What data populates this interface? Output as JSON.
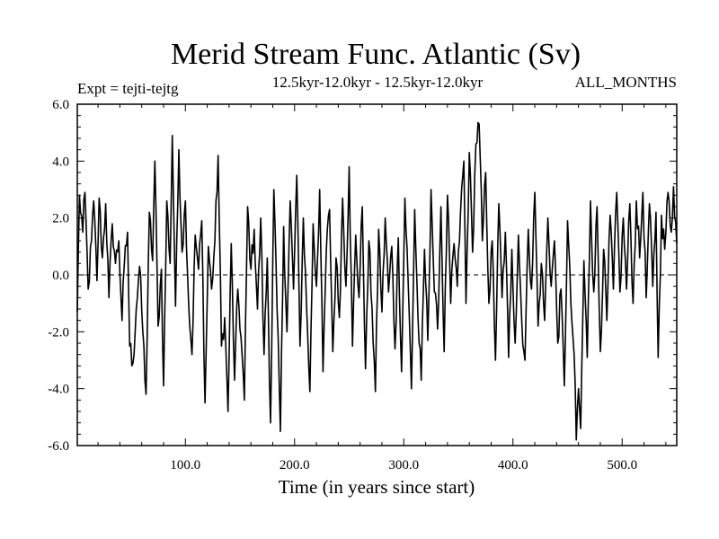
{
  "chart_data": {
    "type": "line",
    "title": "Merid Stream Func. Atlantic (Sv)",
    "expt_label": "Expt = tejti-tejtg",
    "period_label": "12.5kyr-12.0kyr - 12.5kyr-12.0kyr",
    "months_label": "ALL_MONTHS",
    "xlabel": "Time (in years since start)",
    "ylabel": "",
    "xlim": [
      1,
      550
    ],
    "ylim": [
      -6,
      6
    ],
    "xticks": [
      100,
      200,
      300,
      400,
      500
    ],
    "yticks": [
      -6,
      -4,
      -2,
      0,
      2,
      4,
      6
    ],
    "x_tick_labels": [
      "100.0",
      "200.0",
      "300.0",
      "400.0",
      "500.0"
    ],
    "y_tick_labels": [
      "-6.0",
      "-4.0",
      "-2.0",
      "0.0",
      "2.0",
      "4.0",
      "6.0"
    ],
    "zero_line": "dashed",
    "series": [
      {
        "name": "Merid Stream Func. Atlantic",
        "color": "#000000",
        "x_start": 1,
        "x_step": 1,
        "anchors": [
          [
            1,
            -1.3
          ],
          [
            3,
            2.8
          ],
          [
            6,
            1.5
          ],
          [
            8,
            2.9
          ],
          [
            11,
            -0.5
          ],
          [
            14,
            1.2
          ],
          [
            16,
            2.6
          ],
          [
            19,
            -0.2
          ],
          [
            21,
            2.7
          ],
          [
            24,
            0.6
          ],
          [
            27,
            2.5
          ],
          [
            30,
            -0.8
          ],
          [
            33,
            1.8
          ],
          [
            36,
            0.4
          ],
          [
            39,
            1.2
          ],
          [
            42,
            -1.6
          ],
          [
            44,
            0.3
          ],
          [
            47,
            1.5
          ],
          [
            49,
            -2.5
          ],
          [
            52,
            -3.1
          ],
          [
            55,
            -1.2
          ],
          [
            58,
            0.3
          ],
          [
            61,
            -2.0
          ],
          [
            64,
            -4.2
          ],
          [
            67,
            2.2
          ],
          [
            70,
            0.5
          ],
          [
            72,
            4.0
          ],
          [
            75,
            -1.8
          ],
          [
            78,
            0.2
          ],
          [
            80,
            -3.9
          ],
          [
            83,
            2.6
          ],
          [
            86,
            0.4
          ],
          [
            88,
            4.9
          ],
          [
            91,
            -1.1
          ],
          [
            94,
            4.4
          ],
          [
            97,
            0.8
          ],
          [
            100,
            2.6
          ],
          [
            103,
            -1.0
          ],
          [
            106,
            -2.8
          ],
          [
            109,
            1.4
          ],
          [
            112,
            0.2
          ],
          [
            115,
            1.9
          ],
          [
            118,
            -4.5
          ],
          [
            121,
            1.0
          ],
          [
            124,
            -0.5
          ],
          [
            127,
            1.2
          ],
          [
            130,
            4.2
          ],
          [
            133,
            -2.5
          ],
          [
            136,
            -1.5
          ],
          [
            139,
            -4.8
          ],
          [
            142,
            1.1
          ],
          [
            145,
            -3.7
          ],
          [
            148,
            -0.5
          ],
          [
            151,
            -2.2
          ],
          [
            154,
            -4.4
          ],
          [
            157,
            2.4
          ],
          [
            160,
            0.2
          ],
          [
            163,
            1.6
          ],
          [
            166,
            -1.2
          ],
          [
            169,
            2.0
          ],
          [
            172,
            -2.8
          ],
          [
            175,
            0.6
          ],
          [
            178,
            -5.2
          ],
          [
            181,
            3.0
          ],
          [
            184,
            -1.2
          ],
          [
            187,
            -5.5
          ],
          [
            190,
            1.7
          ],
          [
            193,
            -2.0
          ],
          [
            196,
            2.6
          ],
          [
            199,
            -0.5
          ],
          [
            202,
            3.5
          ],
          [
            205,
            -2.5
          ],
          [
            208,
            2.0
          ],
          [
            211,
            -1.1
          ],
          [
            214,
            -4.1
          ],
          [
            217,
            1.8
          ],
          [
            220,
            -0.4
          ],
          [
            223,
            3.0
          ],
          [
            226,
            -3.4
          ],
          [
            229,
            0.8
          ],
          [
            232,
            2.3
          ],
          [
            235,
            -2.7
          ],
          [
            238,
            0.6
          ],
          [
            241,
            -1.5
          ],
          [
            244,
            2.7
          ],
          [
            247,
            -0.4
          ],
          [
            250,
            3.8
          ],
          [
            253,
            -2.5
          ],
          [
            256,
            1.4
          ],
          [
            259,
            -0.8
          ],
          [
            262,
            2.4
          ],
          [
            265,
            -3.3
          ],
          [
            268,
            1.2
          ],
          [
            271,
            -1.2
          ],
          [
            274,
            -4.1
          ],
          [
            277,
            1.6
          ],
          [
            280,
            -1.3
          ],
          [
            283,
            2.0
          ],
          [
            286,
            -0.6
          ],
          [
            289,
            1.0
          ],
          [
            292,
            -2.6
          ],
          [
            295,
            1.3
          ],
          [
            298,
            -3.4
          ],
          [
            301,
            2.7
          ],
          [
            304,
            -0.2
          ],
          [
            307,
            -4.0
          ],
          [
            310,
            2.3
          ],
          [
            313,
            -1.5
          ],
          [
            316,
            -3.7
          ],
          [
            319,
            0.9
          ],
          [
            322,
            -2.3
          ],
          [
            325,
            3.0
          ],
          [
            328,
            -0.6
          ],
          [
            331,
            -1.9
          ],
          [
            334,
            2.4
          ],
          [
            337,
            -2.7
          ],
          [
            340,
            2.8
          ],
          [
            343,
            -1.0
          ],
          [
            346,
            1.1
          ],
          [
            349,
            -0.4
          ],
          [
            352,
            2.2
          ],
          [
            355,
            4.0
          ],
          [
            357,
            -1.0
          ],
          [
            360,
            4.3
          ],
          [
            363,
            0.8
          ],
          [
            366,
            4.6
          ],
          [
            369,
            5.3
          ],
          [
            372,
            1.2
          ],
          [
            375,
            3.6
          ],
          [
            378,
            -1.0
          ],
          [
            381,
            1.2
          ],
          [
            384,
            -3.0
          ],
          [
            387,
            2.5
          ],
          [
            390,
            -0.8
          ],
          [
            393,
            1.5
          ],
          [
            396,
            -2.9
          ],
          [
            399,
            0.9
          ],
          [
            402,
            -2.4
          ],
          [
            405,
            1.4
          ],
          [
            408,
            -1.6
          ],
          [
            411,
            -3.0
          ],
          [
            414,
            1.6
          ],
          [
            417,
            -0.5
          ],
          [
            420,
            2.9
          ],
          [
            423,
            -1.8
          ],
          [
            426,
            0.4
          ],
          [
            429,
            -1.6
          ],
          [
            432,
            2.0
          ],
          [
            435,
            -0.4
          ],
          [
            438,
            1.2
          ],
          [
            441,
            -2.4
          ],
          [
            444,
            -0.5
          ],
          [
            447,
            -3.9
          ],
          [
            450,
            1.9
          ],
          [
            453,
            -1.0
          ],
          [
            456,
            -2.8
          ],
          [
            458,
            -5.8
          ],
          [
            460,
            -4.0
          ],
          [
            462,
            -5.4
          ],
          [
            465,
            0.5
          ],
          [
            468,
            -2.9
          ],
          [
            471,
            2.6
          ],
          [
            474,
            -0.6
          ],
          [
            477,
            2.4
          ],
          [
            480,
            -2.7
          ],
          [
            483,
            0.9
          ],
          [
            486,
            -1.6
          ],
          [
            489,
            2.1
          ],
          [
            492,
            -0.5
          ],
          [
            495,
            2.9
          ],
          [
            498,
            -0.6
          ],
          [
            501,
            2.0
          ],
          [
            504,
            -0.5
          ],
          [
            507,
            2.5
          ],
          [
            510,
            -1.0
          ],
          [
            513,
            2.6
          ],
          [
            516,
            0.6
          ],
          [
            519,
            2.9
          ],
          [
            522,
            -0.8
          ],
          [
            525,
            2.5
          ],
          [
            528,
            -0.4
          ],
          [
            531,
            2.2
          ],
          [
            533,
            -2.9
          ],
          [
            536,
            2.1
          ],
          [
            539,
            0.9
          ],
          [
            542,
            2.9
          ],
          [
            545,
            1.5
          ],
          [
            547,
            3.1
          ],
          [
            550,
            1.1
          ]
        ]
      }
    ]
  }
}
